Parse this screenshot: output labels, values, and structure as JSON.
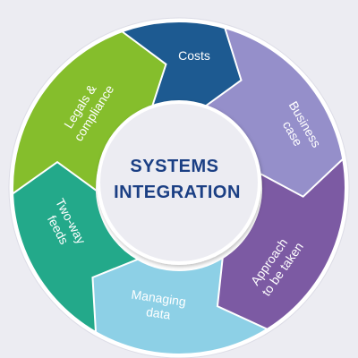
{
  "center": {
    "line1": "SYSTEMS",
    "line2": "INTEGRATION"
  },
  "segments": [
    {
      "id": "costs",
      "lines": [
        "Costs"
      ],
      "color": "#1d5a91"
    },
    {
      "id": "business-case",
      "lines": [
        "Business",
        "case"
      ],
      "color": "#958fca"
    },
    {
      "id": "approach",
      "lines": [
        "Approach",
        "to be taken"
      ],
      "color": "#7c5aa3"
    },
    {
      "id": "managing-data",
      "lines": [
        "Managing",
        "data"
      ],
      "color": "#8dd0e6"
    },
    {
      "id": "two-way-feeds",
      "lines": [
        "Two-way",
        "feeds"
      ],
      "color": "#23a98a"
    },
    {
      "id": "legals",
      "lines": [
        "Legals &",
        "compliance"
      ],
      "color": "#85be2c"
    }
  ]
}
